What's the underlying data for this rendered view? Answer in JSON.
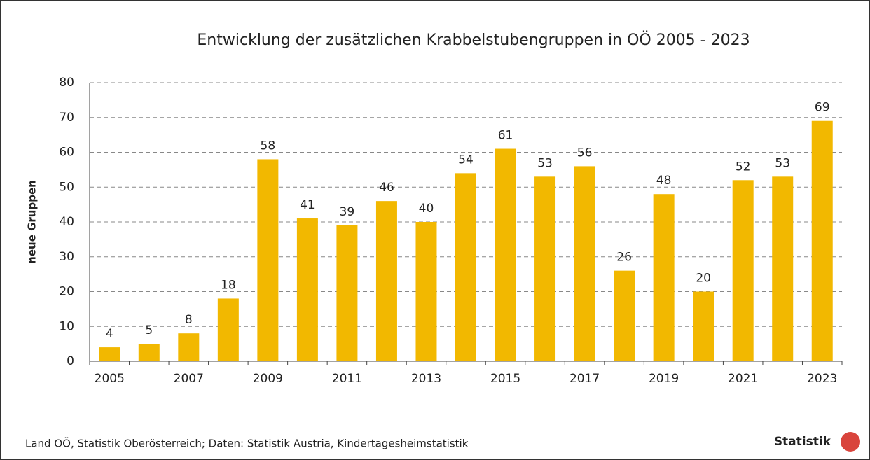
{
  "chart_data": {
    "type": "bar",
    "title": "Entwicklung der zusätzlichen Krabbelstubengruppen in OÖ 2005 - 2023",
    "y_label": "neue  Gruppen",
    "categories": [
      "2005",
      null,
      "2007",
      null,
      "2009",
      null,
      "2011",
      null,
      "2013",
      null,
      "2015",
      null,
      "2017",
      null,
      "2019",
      null,
      "2021",
      null,
      "2023"
    ],
    "values": [
      4,
      5,
      8,
      18,
      58,
      41,
      39,
      46,
      40,
      54,
      61,
      53,
      56,
      26,
      48,
      20,
      52,
      53,
      69
    ],
    "color": "#f2b800",
    "ylim": [
      0,
      80
    ],
    "yticks": [
      0,
      10,
      20,
      30,
      40,
      50,
      60,
      70,
      80
    ],
    "grid": true,
    "source": "Land OÖ, Statistik Oberösterreich; Daten: Statistik Austria, Kindertagesheimstatistik",
    "logo": "Statistik"
  }
}
